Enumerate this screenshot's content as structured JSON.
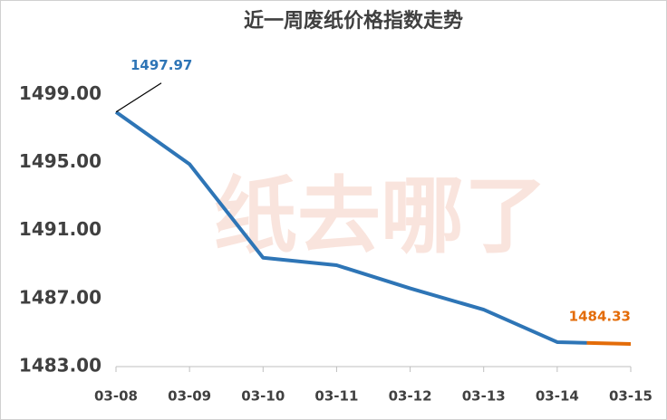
{
  "chart_data": {
    "type": "line",
    "title": "近一周废纸价格指数走势",
    "categories": [
      "03-08",
      "03-09",
      "03-10",
      "03-11",
      "03-12",
      "03-13",
      "03-14",
      "03-15"
    ],
    "series": [
      {
        "name": "废纸价格指数",
        "colors": [
          "#2e75b6",
          "#e36c09"
        ],
        "values": [
          1497.97,
          1494.9,
          1489.4,
          1488.96,
          1487.6,
          1486.35,
          1484.44,
          1484.33
        ]
      }
    ],
    "labeled_points": [
      0,
      7
    ],
    "ylim": [
      1483,
      1502
    ],
    "yticks": [
      {
        "value": 1483,
        "label": "1483.00"
      },
      {
        "value": 1487,
        "label": "1487.00"
      },
      {
        "value": 1491,
        "label": "1491.00"
      },
      {
        "value": 1495,
        "label": "1495.00"
      },
      {
        "value": 1499,
        "label": "1499.00"
      }
    ],
    "grid": false,
    "watermark": "纸去哪了"
  }
}
